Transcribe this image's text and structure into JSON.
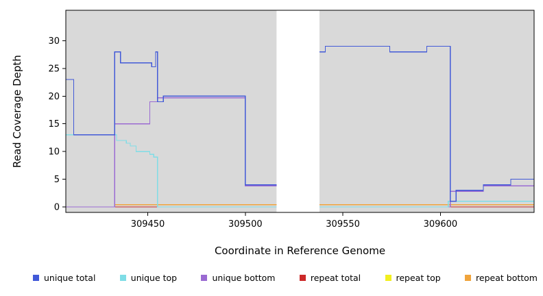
{
  "chart_data": {
    "type": "line",
    "step": true,
    "title": "",
    "xlabel": "Coordinate in Reference Genome",
    "ylabel": "Read Coverage Depth",
    "xlim": [
      309408,
      309648
    ],
    "ylim": [
      -1,
      35.5
    ],
    "xticks": [
      309450,
      309500,
      309550,
      309600
    ],
    "yticks": [
      0,
      5,
      10,
      15,
      20,
      25,
      30
    ],
    "grid": false,
    "legend_position": "bottom",
    "panel_bg": "#d9d9d9",
    "figure_bg": "#ffffff",
    "axis_color": "#000000",
    "gap_region": {
      "x_start": 309516,
      "x_end": 309538,
      "color": "#ffffff"
    },
    "draw_order": [
      4,
      3,
      5,
      2,
      1,
      0
    ],
    "series": [
      {
        "name": "unique total",
        "color": "#4159d8",
        "segments": [
          [
            [
              309408,
              23
            ],
            [
              309412,
              23
            ],
            [
              309412,
              13
            ],
            [
              309433,
              13
            ],
            [
              309433,
              28
            ],
            [
              309436,
              28
            ],
            [
              309436,
              26
            ],
            [
              309452,
              26
            ],
            [
              309452,
              25.3
            ],
            [
              309454,
              25.3
            ],
            [
              309454,
              28
            ],
            [
              309455,
              28
            ],
            [
              309455,
              19
            ],
            [
              309458,
              19
            ],
            [
              309458,
              20
            ],
            [
              309500,
              20
            ],
            [
              309500,
              4
            ],
            [
              309516,
              4
            ]
          ],
          [
            [
              309538,
              28
            ],
            [
              309541,
              28
            ],
            [
              309541,
              29
            ],
            [
              309574,
              29
            ],
            [
              309574,
              28
            ],
            [
              309593,
              28
            ],
            [
              309593,
              29
            ],
            [
              309605,
              29
            ],
            [
              309605,
              1
            ],
            [
              309608,
              1
            ],
            [
              309608,
              3
            ],
            [
              309622,
              3
            ],
            [
              309622,
              4
            ],
            [
              309636,
              4
            ],
            [
              309636,
              5
            ],
            [
              309648,
              5
            ]
          ]
        ]
      },
      {
        "name": "unique top",
        "color": "#7fdde6",
        "segments": [
          [
            [
              309408,
              13
            ],
            [
              309434,
              13
            ],
            [
              309434,
              12
            ],
            [
              309439,
              12
            ],
            [
              309439,
              11.5
            ],
            [
              309441,
              11.5
            ],
            [
              309441,
              11
            ],
            [
              309444,
              11
            ],
            [
              309444,
              10
            ],
            [
              309451,
              10
            ],
            [
              309451,
              9.5
            ],
            [
              309453,
              9.5
            ],
            [
              309453,
              9
            ],
            [
              309455,
              9
            ],
            [
              309455,
              0
            ],
            [
              309516,
              0
            ]
          ],
          [
            [
              309538,
              0
            ],
            [
              309604,
              0
            ],
            [
              309604,
              1
            ],
            [
              309648,
              1
            ]
          ]
        ]
      },
      {
        "name": "unique bottom",
        "color": "#9a6ad2",
        "segments": [
          [
            [
              309408,
              0
            ],
            [
              309433,
              0
            ],
            [
              309433,
              15
            ],
            [
              309451,
              15
            ],
            [
              309451,
              19
            ],
            [
              309455,
              19
            ],
            [
              309455,
              19.7
            ],
            [
              309500,
              19.7
            ],
            [
              309500,
              3.8
            ],
            [
              309516,
              3.8
            ]
          ],
          [
            [
              309604,
              0
            ],
            [
              309605,
              0
            ],
            [
              309605,
              2.8
            ],
            [
              309622,
              2.8
            ],
            [
              309622,
              3.8
            ],
            [
              309648,
              3.8
            ]
          ]
        ]
      },
      {
        "name": "repeat total",
        "color": "#cc2929",
        "segments": [
          [
            [
              309408,
              0
            ],
            [
              309516,
              0
            ]
          ],
          [
            [
              309538,
              0
            ],
            [
              309648,
              0
            ]
          ]
        ]
      },
      {
        "name": "repeat top",
        "color": "#f2ef1f",
        "segments": [
          [
            [
              309408,
              0
            ],
            [
              309516,
              0
            ]
          ],
          [
            [
              309538,
              0
            ],
            [
              309648,
              0
            ]
          ]
        ]
      },
      {
        "name": "repeat bottom",
        "color": "#f0a43c",
        "segments": [
          [
            [
              309433,
              0.4
            ],
            [
              309516,
              0.4
            ]
          ],
          [
            [
              309538,
              0.4
            ],
            [
              309648,
              0.4
            ]
          ]
        ]
      }
    ]
  }
}
